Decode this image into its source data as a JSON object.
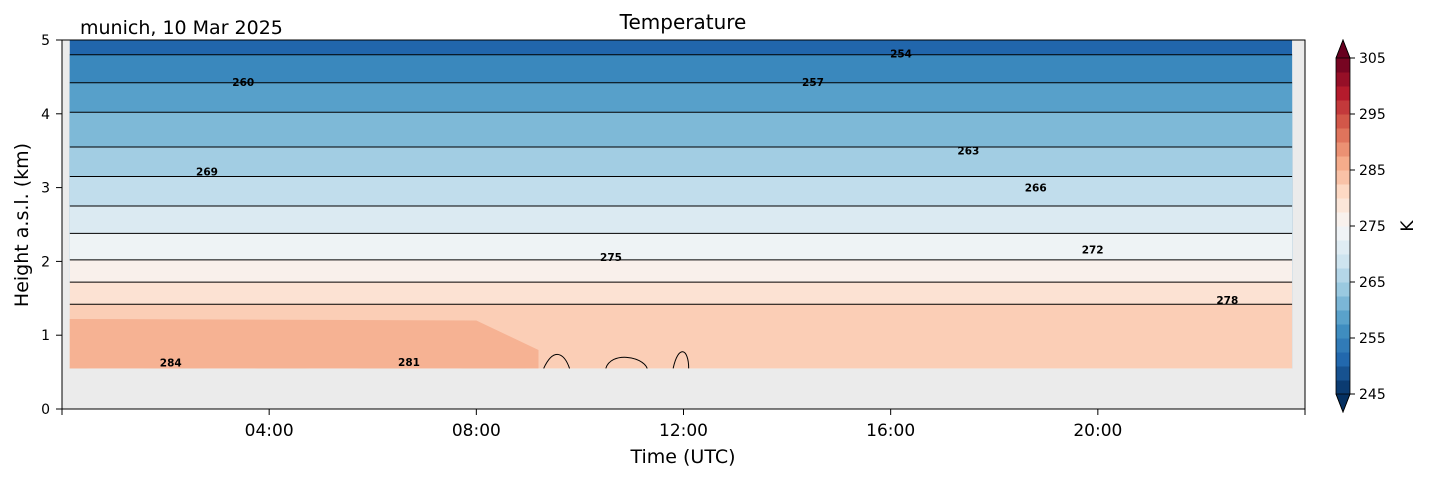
{
  "chart_data": {
    "type": "contour",
    "title": "Temperature",
    "station_label": "munich, 10 Mar 2025",
    "xlabel": "Time (UTC)",
    "ylabel": "Height a.s.l. (km)",
    "xlim_hours": [
      0,
      24
    ],
    "ylim": [
      0,
      5
    ],
    "x_ticks": [
      "04:00",
      "08:00",
      "12:00",
      "16:00",
      "20:00"
    ],
    "x_tick_hours": [
      4,
      8,
      12,
      16,
      20
    ],
    "y_ticks": [
      "0",
      "1",
      "2",
      "3",
      "4",
      "5"
    ],
    "y_tick_values": [
      0,
      1,
      2,
      3,
      4,
      5
    ],
    "data_bottom_km": 0.55,
    "colorbar": {
      "label": "K",
      "vmin": 245,
      "vmax": 305,
      "ticks": [
        "245",
        "255",
        "265",
        "275",
        "285",
        "295",
        "305"
      ],
      "tick_values": [
        245,
        255,
        265,
        275,
        285,
        295,
        305
      ],
      "extend": "both",
      "colormap": "RdBu_r"
    },
    "contour_interval": 3,
    "contour_lines": [
      {
        "level": 284,
        "height_km": 0.55,
        "trend": 0.0
      },
      {
        "level": 281,
        "height_km": 1.42,
        "trend": 0.0
      },
      {
        "level": 278,
        "height_km": 1.72,
        "trend": 0.05
      },
      {
        "level": 275,
        "height_km": 2.02,
        "trend": 0.1
      },
      {
        "level": 272,
        "height_km": 2.38,
        "trend": 0.15
      },
      {
        "level": 269,
        "height_km": 2.75,
        "trend": 0.2
      },
      {
        "level": 266,
        "height_km": 3.15,
        "trend": 0.25
      },
      {
        "level": 263,
        "height_km": 3.55,
        "trend": 0.3
      },
      {
        "level": 260,
        "height_km": 4.02,
        "trend": 0.35
      },
      {
        "level": 257,
        "height_km": 4.42,
        "trend": 0.4
      },
      {
        "level": 254,
        "height_km": 4.8,
        "trend": 0.45
      }
    ],
    "contour_labels": [
      {
        "text": "254",
        "hour": 16.2,
        "km": 4.82
      },
      {
        "text": "257",
        "hour": 14.5,
        "km": 4.43
      },
      {
        "text": "260",
        "hour": 3.5,
        "km": 4.43
      },
      {
        "text": "263",
        "hour": 17.5,
        "km": 3.5
      },
      {
        "text": "269",
        "hour": 2.8,
        "km": 3.22
      },
      {
        "text": "266",
        "hour": 18.8,
        "km": 3.0
      },
      {
        "text": "275",
        "hour": 10.6,
        "km": 2.06
      },
      {
        "text": "272",
        "hour": 19.9,
        "km": 2.16
      },
      {
        "text": "278",
        "hour": 22.5,
        "km": 1.48
      },
      {
        "text": "284",
        "hour": 2.1,
        "km": 0.63
      },
      {
        "text": "281",
        "hour": 6.7,
        "km": 0.64
      }
    ]
  }
}
